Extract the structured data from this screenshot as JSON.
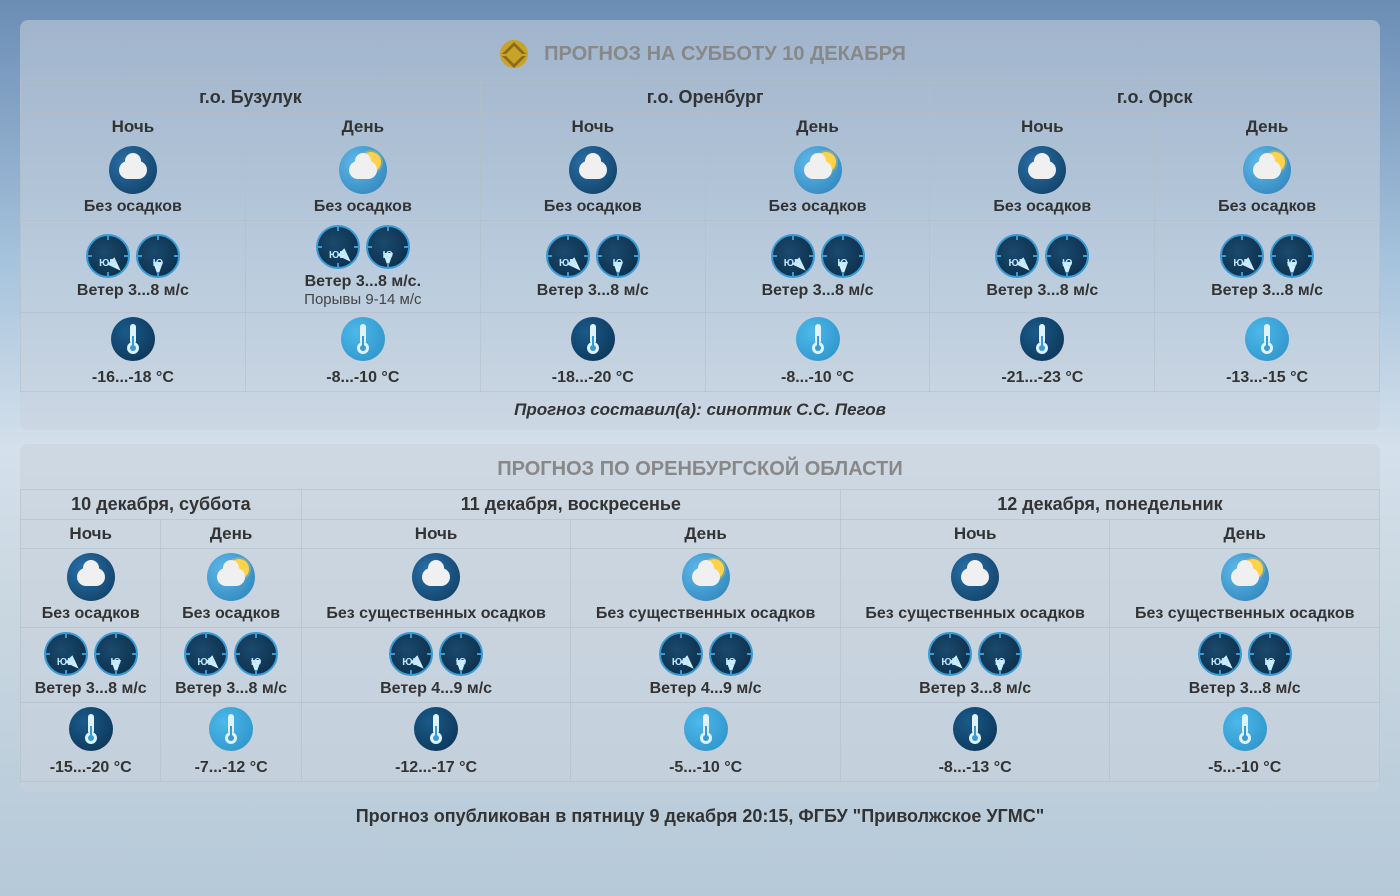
{
  "colors": {
    "panel_bg": "rgba(200,210,220,0.55)",
    "title_gray": "#888888",
    "text_main": "#333333",
    "border": "rgba(180,190,200,0.6)",
    "icon_night_bg": "#0d3a5c",
    "icon_day_bg": "#2a7fb5",
    "compass_border": "#3a9bd4",
    "thermo_cold": "#0a3050",
    "thermo_cool": "#2a8fc5"
  },
  "typography": {
    "title_fontsize": 20,
    "city_fontsize": 18,
    "period_fontsize": 17,
    "cell_fontsize": 16,
    "author_fontsize": 17,
    "footer_fontsize": 18
  },
  "panel1": {
    "title": "ПРОГНОЗ НА СУББОТУ 10 ДЕКАБРЯ",
    "locations": [
      "г.о. Бузулук",
      "г.о. Оренбург",
      "г.о. Орск"
    ],
    "periods": [
      "Ночь",
      "День",
      "Ночь",
      "День",
      "Ночь",
      "День"
    ],
    "cells": [
      {
        "sky_icon": "cloud-night",
        "precip": "Без осадков",
        "wind_dir": [
          "ЮВ",
          "Ю"
        ],
        "wind": "Ветер 3...8 м/с",
        "gusts": "",
        "temp_icon": "cold",
        "temp": "-16...-18 °C"
      },
      {
        "sky_icon": "sun-cloud",
        "precip": "Без осадков",
        "wind_dir": [
          "ЮВ",
          "Ю"
        ],
        "wind": "Ветер 3...8 м/с.",
        "gusts": "Порывы 9-14 м/с",
        "temp_icon": "cool",
        "temp": "-8...-10 °C"
      },
      {
        "sky_icon": "cloud-night",
        "precip": "Без осадков",
        "wind_dir": [
          "ЮВ",
          "Ю"
        ],
        "wind": "Ветер 3...8 м/с",
        "gusts": "",
        "temp_icon": "cold",
        "temp": "-18...-20 °C"
      },
      {
        "sky_icon": "sun-cloud",
        "precip": "Без осадков",
        "wind_dir": [
          "ЮВ",
          "Ю"
        ],
        "wind": "Ветер 3...8 м/с",
        "gusts": "",
        "temp_icon": "cool",
        "temp": "-8...-10 °C"
      },
      {
        "sky_icon": "cloud-night",
        "precip": "Без осадков",
        "wind_dir": [
          "ЮВ",
          "Ю"
        ],
        "wind": "Ветер 3...8 м/с",
        "gusts": "",
        "temp_icon": "cold",
        "temp": "-21...-23 °C"
      },
      {
        "sky_icon": "sun-cloud",
        "precip": "Без осадков",
        "wind_dir": [
          "ЮВ",
          "Ю"
        ],
        "wind": "Ветер 3...8 м/с",
        "gusts": "",
        "temp_icon": "cool",
        "temp": "-13...-15 °C"
      }
    ],
    "author": "Прогноз составил(а): синоптик С.С. Пегов"
  },
  "panel2": {
    "title": "ПРОГНОЗ ПО ОРЕНБУРГСКОЙ ОБЛАСТИ",
    "dates": [
      "10 декабря, суббота",
      "11 декабря, воскресенье",
      "12 декабря, понедельник"
    ],
    "periods": [
      "Ночь",
      "День",
      "Ночь",
      "День",
      "Ночь",
      "День"
    ],
    "cells": [
      {
        "sky_icon": "cloud-night",
        "precip": "Без осадков",
        "wind_dir": [
          "ЮВ",
          "Ю"
        ],
        "wind": "Ветер 3...8 м/с",
        "temp_icon": "cold",
        "temp": "-15...-20 °C"
      },
      {
        "sky_icon": "sun-cloud",
        "precip": "Без осадков",
        "wind_dir": [
          "ЮВ",
          "Ю"
        ],
        "wind": "Ветер 3...8 м/с",
        "temp_icon": "cool",
        "temp": "-7...-12 °C"
      },
      {
        "sky_icon": "cloud-night",
        "precip": "Без существенных осадков",
        "wind_dir": [
          "ЮВ",
          "Ю"
        ],
        "wind": "Ветер 4...9 м/с",
        "temp_icon": "cold",
        "temp": "-12...-17 °C"
      },
      {
        "sky_icon": "sun-cloud",
        "precip": "Без существенных осадков",
        "wind_dir": [
          "ЮВ",
          "Ю"
        ],
        "wind": "Ветер 4...9 м/с",
        "temp_icon": "cool",
        "temp": "-5...-10 °C"
      },
      {
        "sky_icon": "cloud-night",
        "precip": "Без существенных осадков",
        "wind_dir": [
          "ЮВ",
          "Ю"
        ],
        "wind": "Ветер 3...8 м/с",
        "temp_icon": "cold",
        "temp": "-8...-13 °C"
      },
      {
        "sky_icon": "sun-cloud",
        "precip": "Без существенных осадков",
        "wind_dir": [
          "ЮВ",
          "Ю"
        ],
        "wind": "Ветер 3...8 м/с",
        "temp_icon": "cool",
        "temp": "-5...-10 °C"
      }
    ]
  },
  "footer": "Прогноз опубликован в пятницу 9 декабря 20:15, ФГБУ \"Приволжское УГМС\""
}
